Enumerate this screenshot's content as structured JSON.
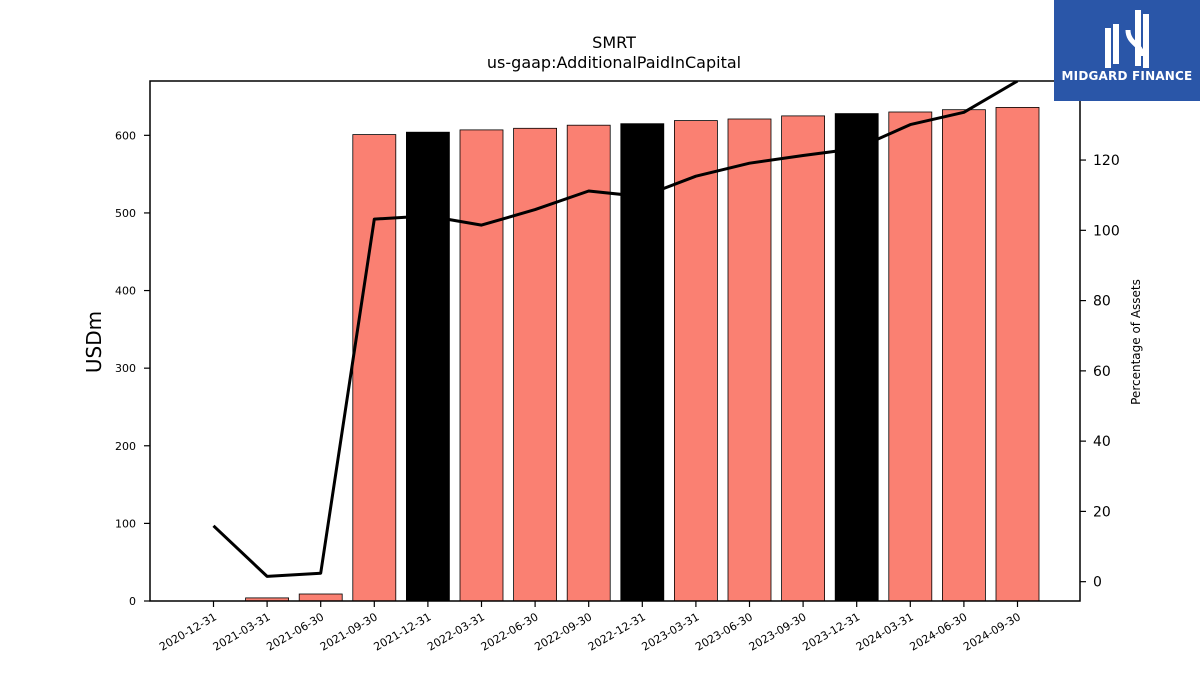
{
  "brand": {
    "name": "MIDGARD FINANCE",
    "color": "#2a56a8"
  },
  "chart_data": {
    "type": "bar",
    "title": "SMRT",
    "subtitle": "us-gaap:AdditionalPaidInCapital",
    "ylabel": "USDm",
    "y2label": "Percentage of Assets",
    "ylim": [
      0,
      670
    ],
    "y2lim": [
      -5.5,
      142.5
    ],
    "yticks": [
      0,
      100,
      200,
      300,
      400,
      500,
      600
    ],
    "y2ticks": [
      0,
      20,
      40,
      60,
      80,
      100,
      120
    ],
    "categories": [
      "2020-12-31",
      "2021-03-31",
      "2021-06-30",
      "2021-09-30",
      "2021-12-31",
      "2022-03-31",
      "2022-06-30",
      "2022-09-30",
      "2022-12-31",
      "2023-03-31",
      "2023-06-30",
      "2023-09-30",
      "2023-12-31",
      "2024-03-31",
      "2024-06-30",
      "2024-09-30"
    ],
    "series": [
      {
        "axis": "left",
        "type": "bar",
        "values": [
          0,
          4,
          9,
          601,
          604,
          607,
          609,
          613,
          615,
          619,
          621,
          625,
          628,
          630,
          633,
          636
        ],
        "colors": [
          "#fa8072",
          "#fa8072",
          "#fa8072",
          "#fa8072",
          "#000000",
          "#fa8072",
          "#fa8072",
          "#fa8072",
          "#000000",
          "#fa8072",
          "#fa8072",
          "#fa8072",
          "#000000",
          "#fa8072",
          "#fa8072",
          "#fa8072"
        ]
      },
      {
        "axis": "right",
        "type": "line",
        "color": "#000000",
        "values": [
          15.9,
          1.5,
          2.4,
          103.2,
          104.1,
          101.5,
          105.9,
          111.2,
          109.6,
          115.4,
          119.1,
          121.3,
          123.3,
          130.1,
          133.6,
          142.5
        ]
      }
    ],
    "grid": false,
    "bar_color": "#fa8072",
    "highlight_color": "#000000"
  }
}
